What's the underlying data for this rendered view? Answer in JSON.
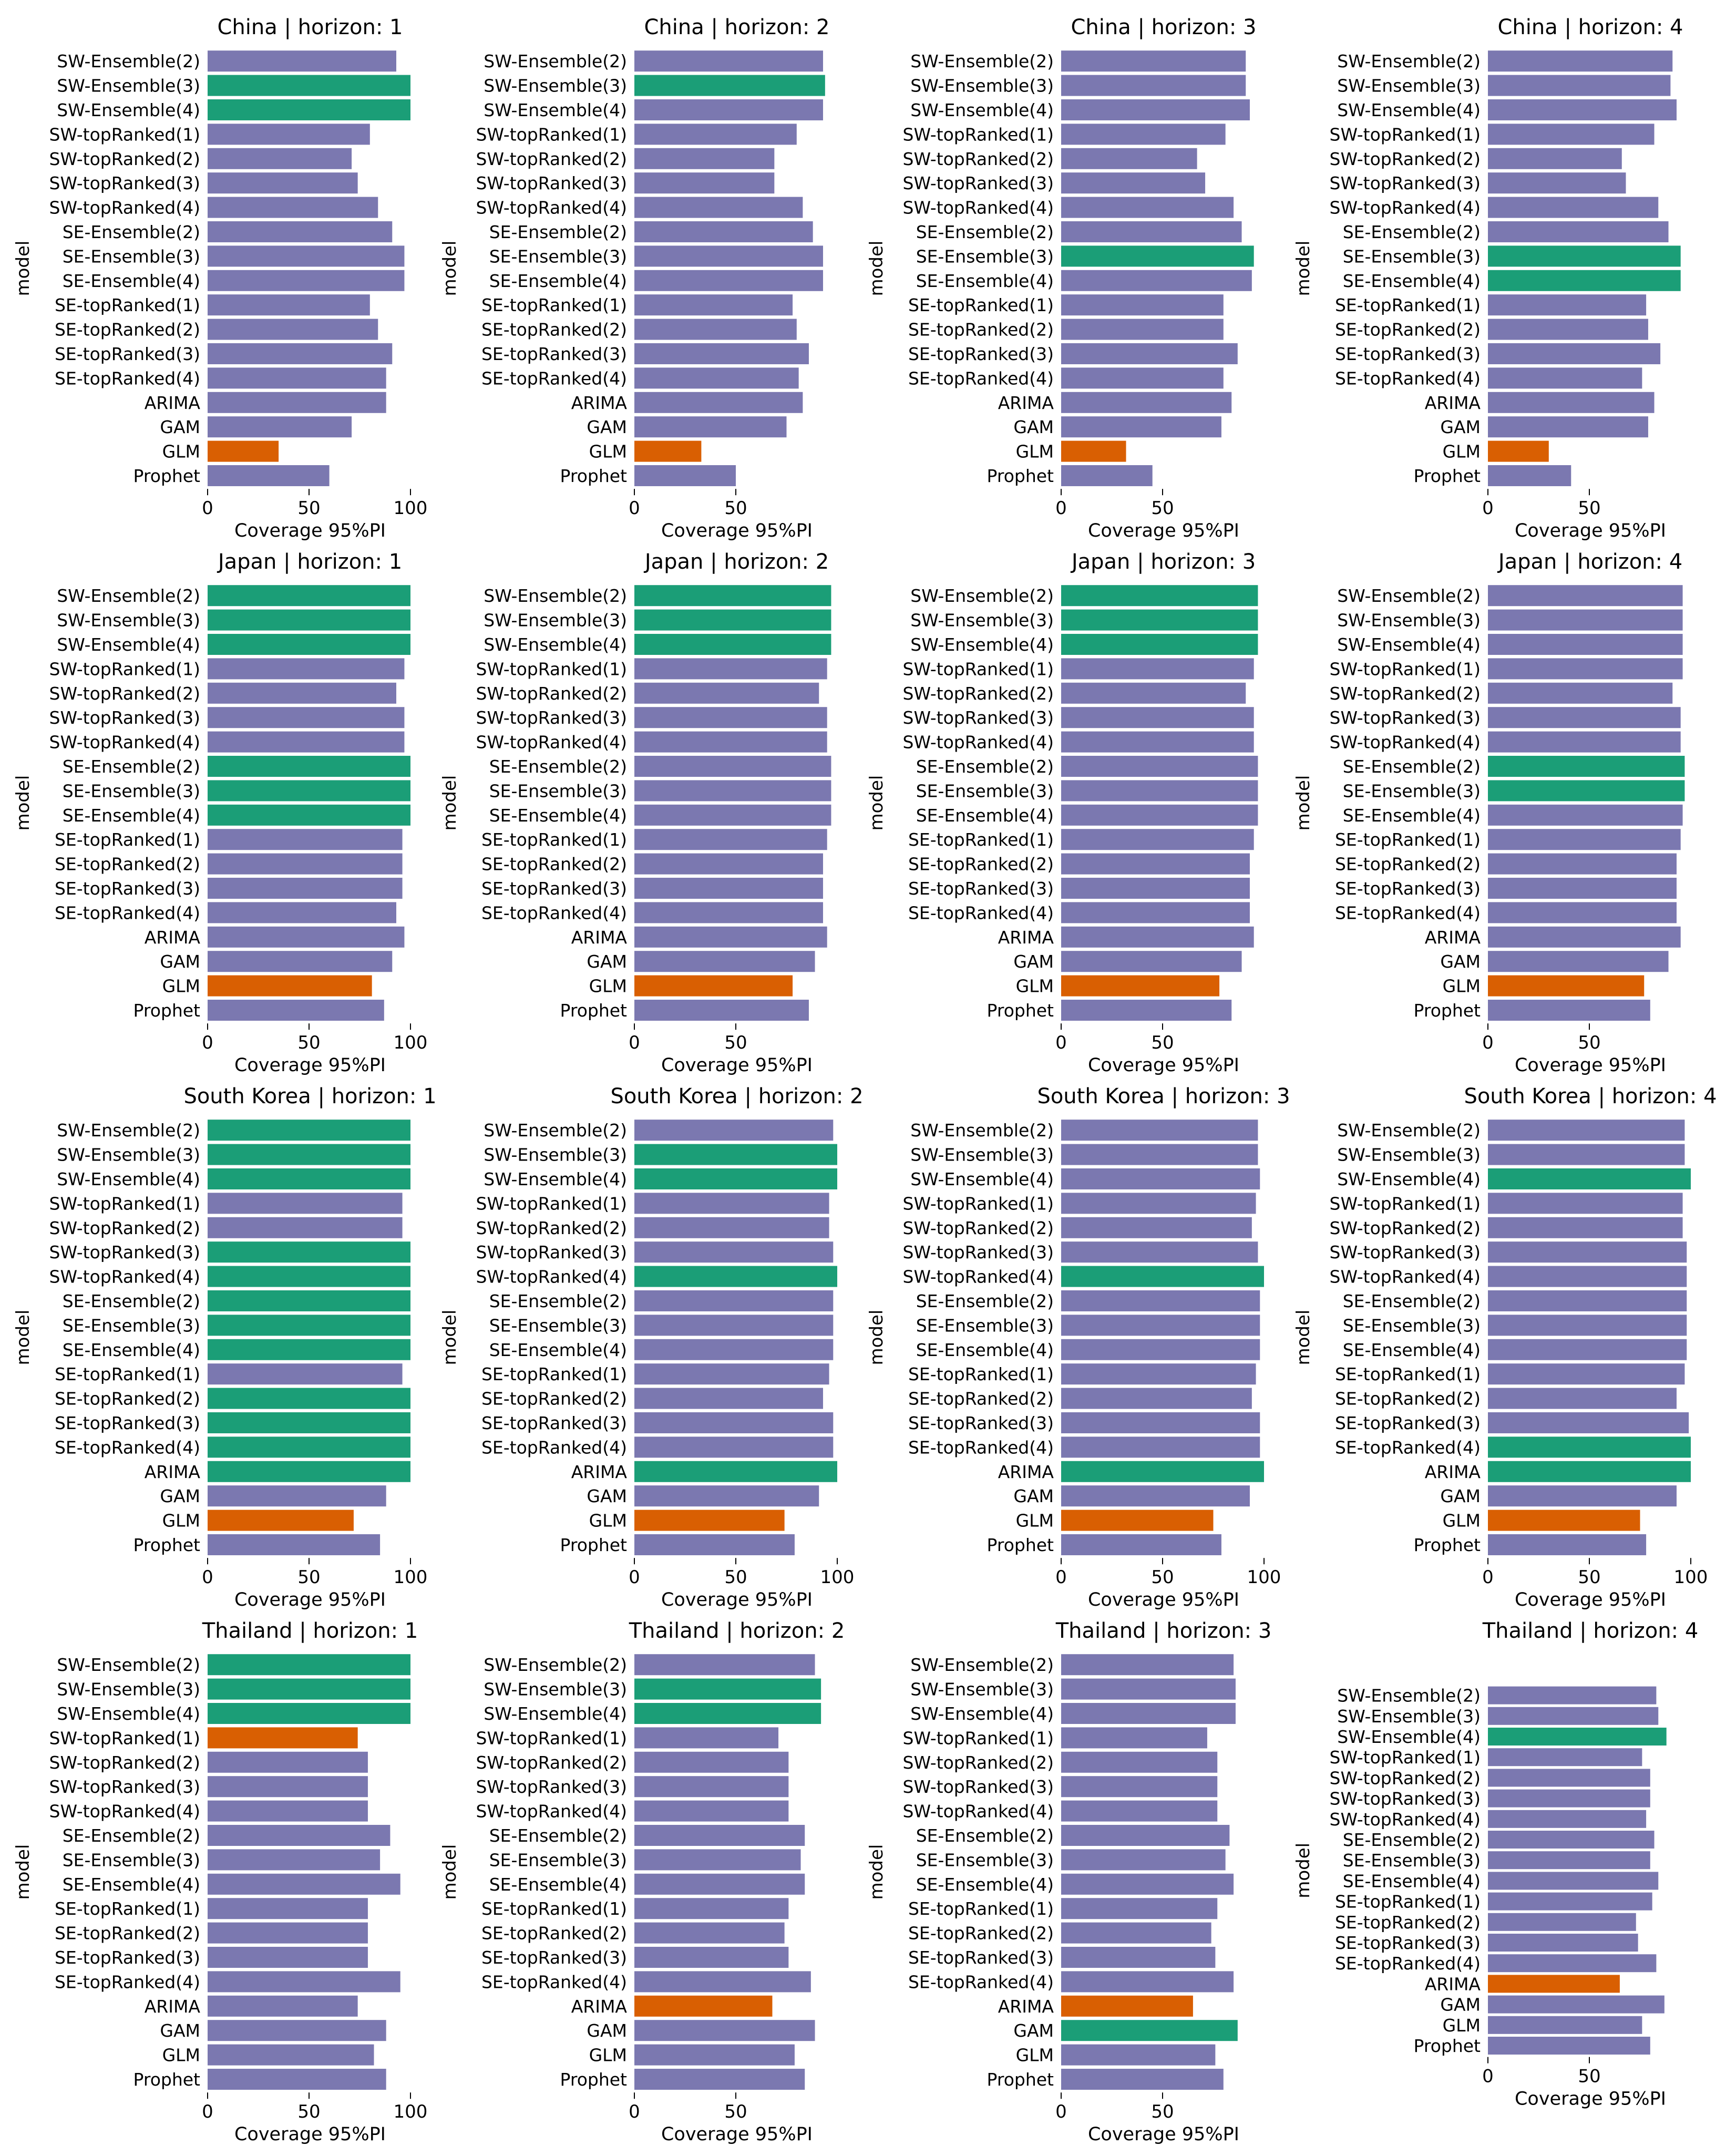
{
  "figure": {
    "models": [
      "SW-Ensemble(2)",
      "SW-Ensemble(3)",
      "SW-Ensemble(4)",
      "SW-topRanked(1)",
      "SW-topRanked(2)",
      "SW-topRanked(3)",
      "SW-topRanked(4)",
      "SE-Ensemble(2)",
      "SE-Ensemble(3)",
      "SE-Ensemble(4)",
      "SE-topRanked(1)",
      "SE-topRanked(2)",
      "SE-topRanked(3)",
      "SE-topRanked(4)",
      "ARIMA",
      "GAM",
      "GLM",
      "Prophet"
    ],
    "xlabel": "Coverage 95%PI",
    "ylabel": "model",
    "colors": {
      "default": "#7b78b0",
      "best": "#1b9e77",
      "worst": "#d95f02"
    }
  },
  "chart_data": [
    {
      "type": "bar",
      "orientation": "horizontal",
      "title": "China | horizon: 1",
      "xticks": [
        0,
        50,
        100
      ],
      "xlim": [
        0,
        101
      ],
      "values": [
        93,
        100,
        100,
        80,
        71,
        74,
        84,
        91,
        97,
        97,
        80,
        84,
        91,
        88,
        88,
        71,
        35,
        60
      ],
      "highlight": {
        "best": [
          1,
          2
        ],
        "worst": [
          16
        ]
      }
    },
    {
      "type": "bar",
      "orientation": "horizontal",
      "title": "China | horizon: 2",
      "xticks": [
        0,
        50
      ],
      "xlim": [
        0,
        95
      ],
      "values": [
        93,
        94,
        93,
        80,
        69,
        69,
        83,
        88,
        93,
        93,
        78,
        80,
        86,
        81,
        83,
        75,
        33,
        50
      ],
      "highlight": {
        "best": [
          1
        ],
        "worst": [
          16
        ]
      }
    },
    {
      "type": "bar",
      "orientation": "horizontal",
      "title": "China | horizon: 3",
      "xticks": [
        0,
        50
      ],
      "xlim": [
        0,
        95
      ],
      "values": [
        91,
        91,
        93,
        81,
        67,
        71,
        85,
        89,
        95,
        94,
        80,
        80,
        87,
        80,
        84,
        79,
        32,
        45
      ],
      "highlight": {
        "best": [
          8
        ],
        "worst": [
          16
        ]
      }
    },
    {
      "type": "bar",
      "orientation": "horizontal",
      "title": "China | horizon: 4",
      "xticks": [
        0,
        50
      ],
      "xlim": [
        0,
        95
      ],
      "values": [
        91,
        90,
        93,
        82,
        66,
        68,
        84,
        89,
        95,
        95,
        78,
        79,
        85,
        76,
        82,
        79,
        30,
        41
      ],
      "highlight": {
        "best": [
          8,
          9
        ],
        "worst": [
          16
        ]
      }
    },
    {
      "type": "bar",
      "orientation": "horizontal",
      "title": "Japan | horizon: 1",
      "xticks": [
        0,
        50,
        100
      ],
      "xlim": [
        0,
        101
      ],
      "values": [
        100,
        100,
        100,
        97,
        93,
        97,
        97,
        100,
        100,
        100,
        96,
        96,
        96,
        93,
        97,
        91,
        81,
        87
      ],
      "highlight": {
        "best": [
          0,
          1,
          2,
          7,
          8,
          9
        ],
        "worst": [
          16
        ]
      }
    },
    {
      "type": "bar",
      "orientation": "horizontal",
      "title": "Japan | horizon: 2",
      "xticks": [
        0,
        50
      ],
      "xlim": [
        0,
        97
      ],
      "values": [
        97,
        97,
        97,
        95,
        91,
        95,
        95,
        97,
        97,
        97,
        95,
        93,
        93,
        93,
        95,
        89,
        78,
        86
      ],
      "highlight": {
        "best": [
          0,
          1,
          2
        ],
        "worst": [
          16
        ]
      }
    },
    {
      "type": "bar",
      "orientation": "horizontal",
      "title": "Japan | horizon: 3",
      "xticks": [
        0,
        50
      ],
      "xlim": [
        0,
        97
      ],
      "values": [
        97,
        97,
        97,
        95,
        91,
        95,
        95,
        97,
        97,
        97,
        95,
        93,
        93,
        93,
        95,
        89,
        78,
        84
      ],
      "highlight": {
        "best": [
          0,
          1,
          2
        ],
        "worst": [
          16
        ]
      }
    },
    {
      "type": "bar",
      "orientation": "horizontal",
      "title": "Japan | horizon: 4",
      "xticks": [
        0,
        50
      ],
      "xlim": [
        0,
        97
      ],
      "values": [
        96,
        96,
        96,
        96,
        91,
        95,
        95,
        97,
        97,
        96,
        95,
        93,
        93,
        93,
        95,
        89,
        77,
        80
      ],
      "highlight": {
        "best": [
          7,
          8
        ],
        "worst": [
          16
        ]
      }
    },
    {
      "type": "bar",
      "orientation": "horizontal",
      "title": "South Korea | horizon: 1",
      "xticks": [
        0,
        50,
        100
      ],
      "xlim": [
        0,
        101
      ],
      "values": [
        100,
        100,
        100,
        96,
        96,
        100,
        100,
        100,
        100,
        100,
        96,
        100,
        100,
        100,
        100,
        88,
        72,
        85
      ],
      "highlight": {
        "best": [
          0,
          1,
          2,
          5,
          6,
          7,
          8,
          9,
          11,
          12,
          13,
          14
        ],
        "worst": [
          16
        ]
      }
    },
    {
      "type": "bar",
      "orientation": "horizontal",
      "title": "South Korea | horizon: 2",
      "xticks": [
        0,
        50,
        100
      ],
      "xlim": [
        0,
        101
      ],
      "values": [
        98,
        100,
        100,
        96,
        96,
        98,
        100,
        98,
        98,
        98,
        96,
        93,
        98,
        98,
        100,
        91,
        74,
        79
      ],
      "highlight": {
        "best": [
          1,
          2,
          6,
          14
        ],
        "worst": [
          16
        ]
      }
    },
    {
      "type": "bar",
      "orientation": "horizontal",
      "title": "South Korea | horizon: 3",
      "xticks": [
        0,
        50,
        100
      ],
      "xlim": [
        0,
        101
      ],
      "values": [
        97,
        97,
        98,
        96,
        94,
        97,
        100,
        98,
        98,
        98,
        96,
        94,
        98,
        98,
        100,
        93,
        75,
        79
      ],
      "highlight": {
        "best": [
          6,
          14
        ],
        "worst": [
          16
        ]
      }
    },
    {
      "type": "bar",
      "orientation": "horizontal",
      "title": "South Korea | horizon: 4",
      "xticks": [
        0,
        50,
        100
      ],
      "xlim": [
        0,
        101
      ],
      "values": [
        97,
        97,
        100,
        96,
        96,
        98,
        98,
        98,
        98,
        98,
        97,
        93,
        99,
        100,
        100,
        93,
        75,
        78
      ],
      "highlight": {
        "best": [
          2,
          13,
          14
        ],
        "worst": [
          16
        ]
      }
    },
    {
      "type": "bar",
      "orientation": "horizontal",
      "title": "Thailand | horizon: 1",
      "xticks": [
        0,
        50,
        100
      ],
      "xlim": [
        0,
        101
      ],
      "values": [
        100,
        100,
        100,
        74,
        79,
        79,
        79,
        90,
        85,
        95,
        79,
        79,
        79,
        95,
        74,
        88,
        82,
        88
      ],
      "highlight": {
        "best": [
          0,
          1,
          2
        ],
        "worst": [
          3
        ]
      }
    },
    {
      "type": "bar",
      "orientation": "horizontal",
      "title": "Thailand | horizon: 2",
      "xticks": [
        0,
        50
      ],
      "xlim": [
        0,
        92
      ],
      "values": [
        89,
        92,
        92,
        71,
        76,
        76,
        76,
        84,
        82,
        84,
        76,
        74,
        76,
        87,
        68,
        89,
        79,
        84
      ],
      "highlight": {
        "best": [
          1,
          2
        ],
        "worst": [
          14
        ]
      }
    },
    {
      "type": "bar",
      "orientation": "horizontal",
      "title": "Thailand | horizon: 3",
      "xticks": [
        0,
        50
      ],
      "xlim": [
        0,
        90
      ],
      "values": [
        85,
        86,
        86,
        72,
        77,
        77,
        77,
        83,
        81,
        85,
        77,
        74,
        76,
        85,
        65,
        87,
        76,
        80
      ],
      "highlight": {
        "best": [
          15
        ],
        "worst": [
          14
        ]
      }
    },
    {
      "type": "bar",
      "orientation": "horizontal",
      "title": "Thailand | horizon: 4",
      "xticks": [
        0,
        50
      ],
      "xlim": [
        0,
        88
      ],
      "values": [
        83,
        84,
        88,
        76,
        80,
        80,
        78,
        82,
        80,
        84,
        81,
        73,
        74,
        83,
        65,
        87,
        76,
        80
      ],
      "highlight": {
        "best": [
          2
        ],
        "worst": [
          14
        ]
      }
    }
  ]
}
